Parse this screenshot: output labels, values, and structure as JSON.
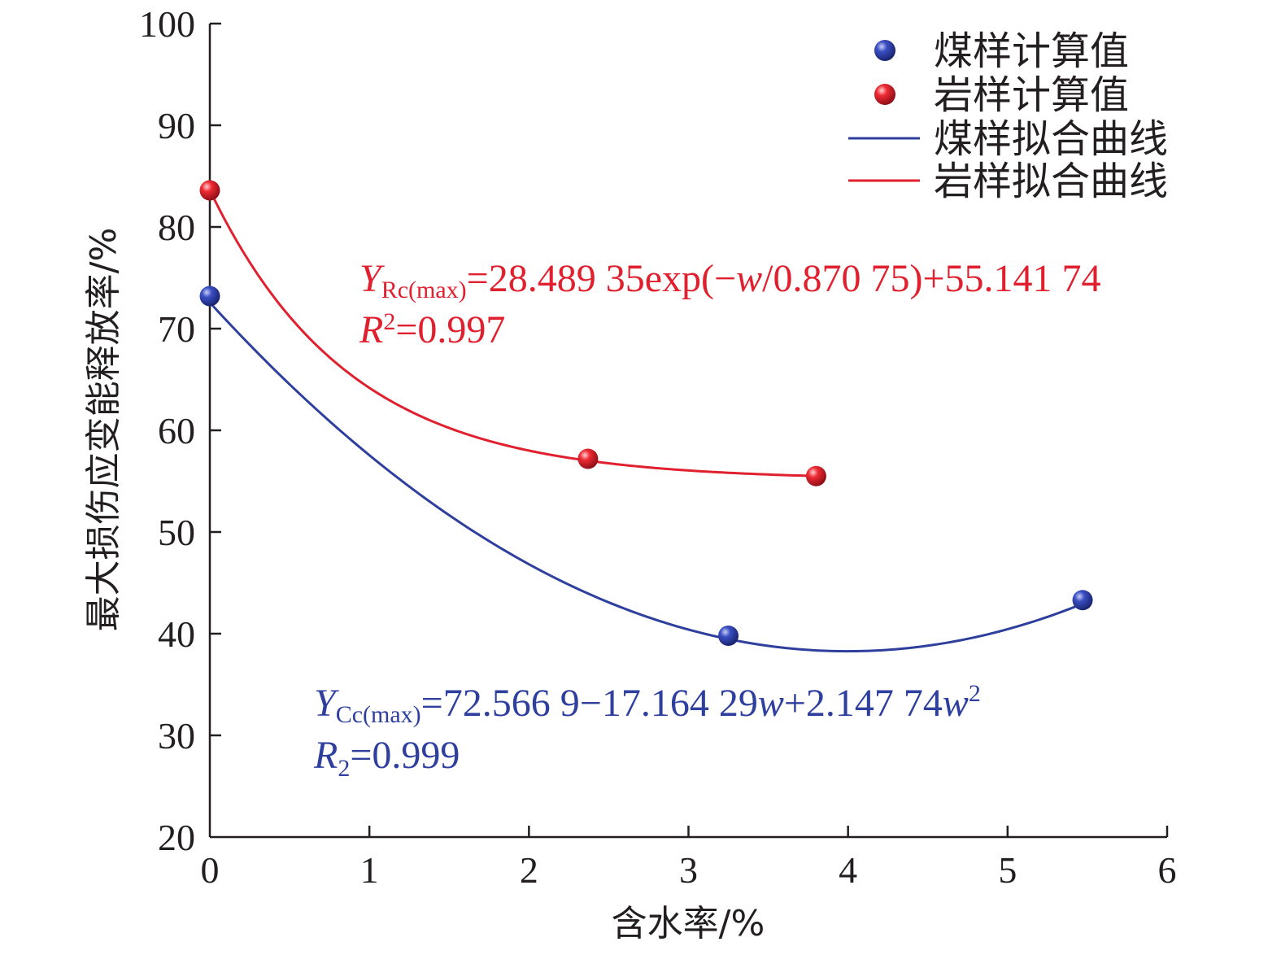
{
  "chart_data": {
    "type": "scatter",
    "xlabel": "含水率/%",
    "ylabel": "最大损伤应变能释放率/%",
    "xlim": [
      0,
      6
    ],
    "ylim": [
      20,
      100
    ],
    "xticks": [
      "0",
      "1",
      "2",
      "3",
      "4",
      "5",
      "6"
    ],
    "yticks": [
      "20",
      "30",
      "40",
      "50",
      "60",
      "70",
      "80",
      "90",
      "100"
    ],
    "grid": false,
    "legend_position": "top-right",
    "series": [
      {
        "name": "煤样计算值",
        "kind": "scatter",
        "color": "#2e3f9e",
        "x": [
          0,
          3.25,
          5.47
        ],
        "y": [
          73.2,
          39.8,
          43.3
        ]
      },
      {
        "name": "岩样计算值",
        "kind": "scatter",
        "color": "#e0202e",
        "x": [
          0,
          2.37,
          3.8
        ],
        "y": [
          83.6,
          57.2,
          55.5
        ]
      },
      {
        "name": "煤样拟合曲线",
        "kind": "line",
        "color": "#2e3f9e",
        "model": "quadratic",
        "coefficients": [
          72.5669,
          -17.16429,
          2.14774
        ],
        "domain": [
          0,
          5.47
        ]
      },
      {
        "name": "岩样拟合曲线",
        "kind": "line",
        "color": "#e0202e",
        "model": "exponential",
        "coefficients": {
          "A": 28.48935,
          "t": 0.87075,
          "y0": 55.14174
        },
        "domain": [
          0,
          3.8
        ]
      }
    ],
    "annotations": {
      "rock_eq": {
        "Y": "Y",
        "sub": "Rc(max)",
        "expr_a": "=28.489 35exp(−",
        "w": "w",
        "expr_b": "/0.870 75)+55.141 74",
        "R": "R",
        "sup": "2",
        "r_value": "=0.997",
        "color": "#e0202e"
      },
      "coal_eq": {
        "Y": "Y",
        "sub": "Cc(max)",
        "expr_a": "=72.566 9−17.164 29",
        "w1": "w",
        "expr_b": "+2.147 74",
        "w2": "w",
        "sup": "2",
        "R": "R",
        "r_sub": "2",
        "r_value": "=0.999",
        "color": "#2e3f9e"
      }
    }
  }
}
